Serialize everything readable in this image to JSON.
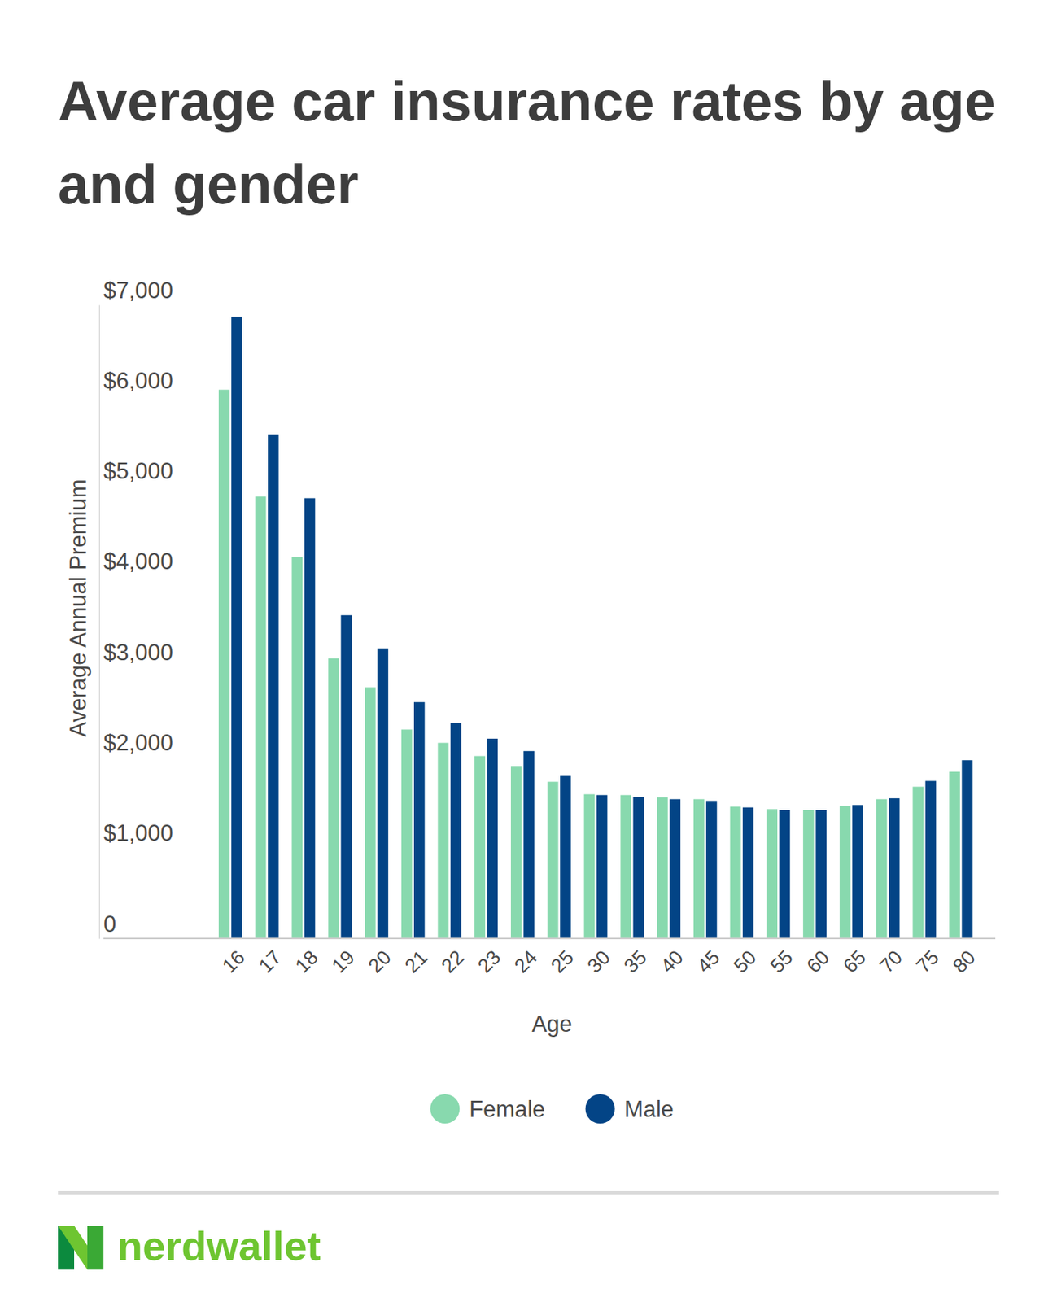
{
  "chart_data": {
    "type": "bar",
    "title": "Average car insurance rates by age and gender",
    "x_label": "Age",
    "y_label": "Average Annual Premium",
    "categories": [
      "16",
      "17",
      "18",
      "19",
      "20",
      "21",
      "22",
      "23",
      "24",
      "25",
      "30",
      "35",
      "40",
      "45",
      "50",
      "55",
      "60",
      "65",
      "70",
      "75",
      "80"
    ],
    "series": [
      {
        "name": "Female",
        "color": "#88d9ae",
        "values": [
          6062,
          4881,
          4212,
          3095,
          2775,
          2308,
          2161,
          2015,
          1905,
          1731,
          1593,
          1584,
          1557,
          1538,
          1456,
          1429,
          1419,
          1465,
          1538,
          1676,
          1841
        ]
      },
      {
        "name": "Male",
        "color": "#034486",
        "values": [
          6868,
          5568,
          4863,
          3571,
          3205,
          2610,
          2381,
          2207,
          2070,
          1804,
          1584,
          1566,
          1538,
          1520,
          1447,
          1419,
          1419,
          1474,
          1548,
          1740,
          1969
        ]
      }
    ],
    "ylim": [
      0,
      7000
    ],
    "yticks": [
      0,
      {
        "value": 1000,
        "label": "$1,000"
      },
      {
        "value": 2000,
        "label": "$2,000"
      },
      {
        "value": 3000,
        "label": "$3,000"
      },
      {
        "value": 4000,
        "label": "$4,000"
      },
      {
        "value": 5000,
        "label": "$5,000"
      },
      {
        "value": 6000,
        "label": "$6,000"
      },
      {
        "value": 7000,
        "label": "$7,000"
      }
    ],
    "grid": false,
    "legend": "bottom",
    "annotations": [
      "nerdwallet"
    ]
  }
}
